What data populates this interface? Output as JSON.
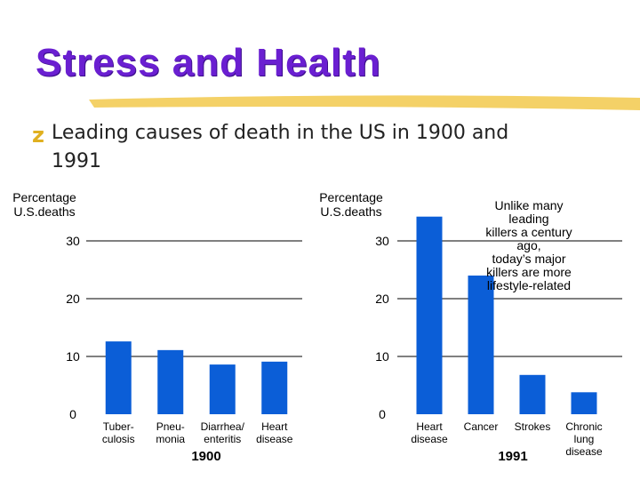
{
  "slide": {
    "title": "Stress and Health",
    "bullet": "Leading causes of death in the US in 1900 and 1991"
  },
  "chart_data": [
    {
      "type": "bar",
      "y_label": "Percentage\nU.S.deaths",
      "x_label": "1900",
      "categories": [
        "Tuber-\nculosis",
        "Pneu-\nmonia",
        "Diarrhea/\nenteritis",
        "Heart\ndisease"
      ],
      "values": [
        12.6,
        11.1,
        8.6,
        9.1
      ],
      "color": "#0b5ed7",
      "ylim": [
        0,
        35
      ],
      "yticks": [
        0,
        10,
        20,
        30
      ],
      "grid": true
    },
    {
      "type": "bar",
      "y_label": "Percentage\nU.S.deaths",
      "x_label": "1991",
      "categories": [
        "Heart\ndisease",
        "Cancer",
        "Strokes",
        "Chronic\nlung disease"
      ],
      "values": [
        34.2,
        24,
        6.8,
        3.8
      ],
      "color": "#0b5ed7",
      "ylim": [
        0,
        35
      ],
      "yticks": [
        0,
        10,
        20,
        30
      ],
      "grid": true,
      "annotation": "Unlike many leading\nkillers a century ago,\ntoday’s major\nkillers are more\nlifestyle-related"
    }
  ]
}
